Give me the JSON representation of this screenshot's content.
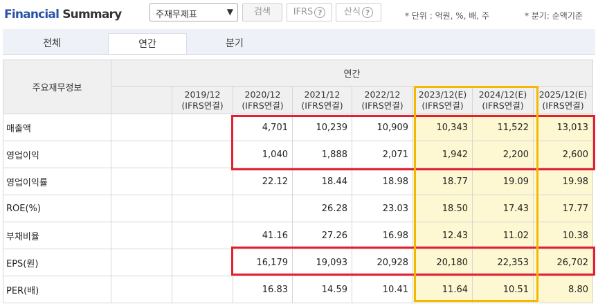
{
  "header": {
    "title_part1": "Financial",
    "title_part2": " Summary",
    "select_value": "주재무제표",
    "search_label": "검색",
    "ifrs_label": "IFRS",
    "formula_label": "산식",
    "help_glyph": "?",
    "unit_note": "* 단위 : 억원, %, 배, 주",
    "basis_note": "* 분기: 순액기준"
  },
  "tabs": [
    {
      "label": "전체",
      "active": false
    },
    {
      "label": "연간",
      "active": true
    },
    {
      "label": "분기",
      "active": false
    }
  ],
  "table": {
    "corner_label": "주요재무정보",
    "group_label": "연간",
    "columns": [
      {
        "year": "2019/12",
        "basis": "(IFRS연결)"
      },
      {
        "year": "2020/12",
        "basis": "(IFRS연결)"
      },
      {
        "year": "2021/12",
        "basis": "(IFRS연결)"
      },
      {
        "year": "2022/12",
        "basis": "(IFRS연결)"
      },
      {
        "year": "2023/12(E)",
        "basis": "(IFRS연결)"
      },
      {
        "year": "2024/12(E)",
        "basis": "(IFRS연결)"
      },
      {
        "year": "2025/12(E)",
        "basis": "(IFRS연결)"
      }
    ],
    "rows": [
      {
        "label": "매출액",
        "values": [
          "",
          "4,701",
          "10,239",
          "10,909",
          "10,343",
          "11,522",
          "13,013"
        ]
      },
      {
        "label": "영업이익",
        "values": [
          "",
          "1,040",
          "1,888",
          "2,071",
          "1,942",
          "2,200",
          "2,600"
        ]
      },
      {
        "label": "영업이익률",
        "values": [
          "",
          "22.12",
          "18.44",
          "18.98",
          "18.77",
          "19.09",
          "19.98"
        ]
      },
      {
        "label": "ROE(%)",
        "values": [
          "",
          "",
          "26.28",
          "23.03",
          "18.50",
          "17.43",
          "17.77"
        ]
      },
      {
        "label": "부채비율",
        "values": [
          "",
          "41.16",
          "27.26",
          "16.98",
          "12.43",
          "11.02",
          "10.38"
        ]
      },
      {
        "label": "EPS(원)",
        "values": [
          "",
          "16,179",
          "19,093",
          "20,928",
          "20,180",
          "22,353",
          "26,702"
        ]
      },
      {
        "label": "PER(배)",
        "values": [
          "",
          "16.83",
          "14.59",
          "10.41",
          "11.64",
          "10.51",
          "8.80"
        ]
      }
    ]
  },
  "colors": {
    "title_accent": "#2a53a8",
    "highlight_red": "#e4202e",
    "highlight_yellow": "#f5b800",
    "estimate_bg": "#fdf7d2"
  }
}
